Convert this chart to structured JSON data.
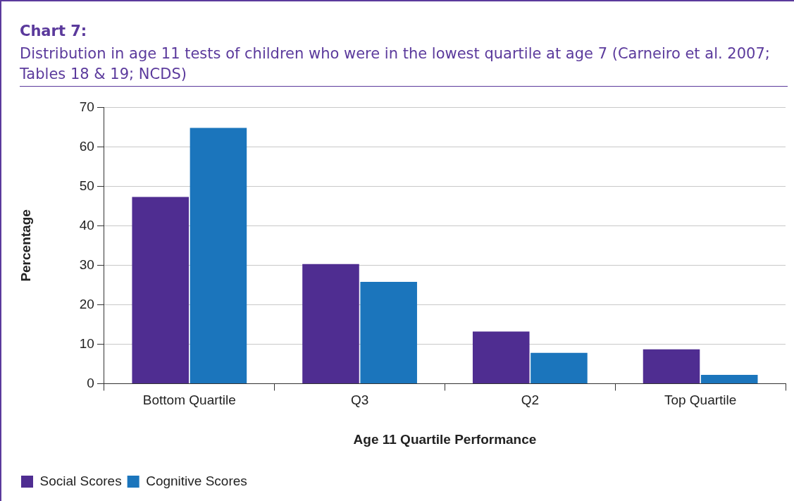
{
  "chart_data": {
    "type": "bar",
    "title": "Chart 7:",
    "subtitle": "Distribution in age 11 tests of children who were in the lowest quartile at age 7 (Carneiro et al. 2007; Tables 18 & 19; NCDS)",
    "xlabel": "Age 11 Quartile Performance",
    "ylabel": "Percentage",
    "categories": [
      "Bottom Quartile",
      "Q3",
      "Q2",
      "Top Quartile"
    ],
    "series": [
      {
        "name": "Social Scores",
        "color": "#4f2d91",
        "values": [
          47.3,
          30.3,
          13.2,
          8.7
        ]
      },
      {
        "name": "Cognitive Scores",
        "color": "#1b75bc",
        "values": [
          64.8,
          25.8,
          7.8,
          2.2
        ]
      }
    ],
    "ylim": [
      0,
      70
    ],
    "yticks": [
      0,
      10,
      20,
      30,
      40,
      50,
      60,
      70
    ],
    "grid": "y",
    "legend": "bottom left"
  }
}
